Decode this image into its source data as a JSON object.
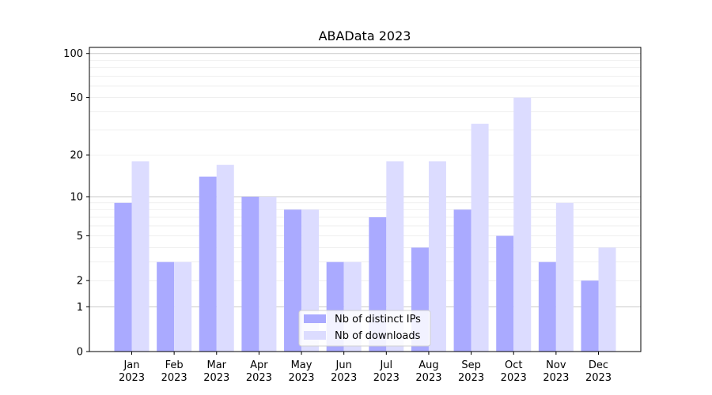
{
  "chart_data": {
    "type": "bar",
    "title": "ABAData 2023",
    "xlabel": "",
    "ylabel": "",
    "y_scale": "symlog",
    "ylim": [
      0,
      110
    ],
    "yticks": [
      0,
      1,
      2,
      5,
      10,
      20,
      50,
      100
    ],
    "grid": true,
    "legend_position": "bottom-center",
    "categories": [
      [
        "Jan",
        "2023"
      ],
      [
        "Feb",
        "2023"
      ],
      [
        "Mar",
        "2023"
      ],
      [
        "Apr",
        "2023"
      ],
      [
        "May",
        "2023"
      ],
      [
        "Jun",
        "2023"
      ],
      [
        "Jul",
        "2023"
      ],
      [
        "Aug",
        "2023"
      ],
      [
        "Sep",
        "2023"
      ],
      [
        "Oct",
        "2023"
      ],
      [
        "Nov",
        "2023"
      ],
      [
        "Dec",
        "2023"
      ]
    ],
    "series": [
      {
        "name": "Nb of distinct IPs",
        "color": "#aaaaff",
        "values": [
          9,
          3,
          14,
          10,
          8,
          3,
          7,
          4,
          8,
          5,
          3,
          2
        ]
      },
      {
        "name": "Nb of downloads",
        "color": "#dcdcff",
        "values": [
          18,
          3,
          17,
          10,
          8,
          3,
          18,
          18,
          33,
          50,
          9,
          4
        ]
      }
    ]
  }
}
